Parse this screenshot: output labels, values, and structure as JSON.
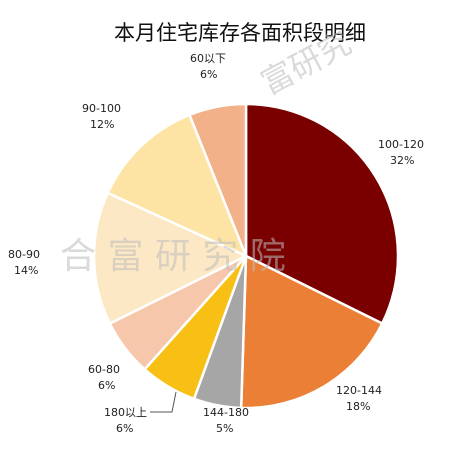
{
  "chart_data": {
    "type": "pie",
    "title": "本月住宅库存各面积段明细",
    "start_angle_deg": 0,
    "direction": "clockwise",
    "slices": [
      {
        "name": "100-120",
        "label": "100-120",
        "pct_label": "32%",
        "value": 32,
        "color": "#7a0000"
      },
      {
        "name": "120-144",
        "label": "120-144",
        "pct_label": "18%",
        "value": 18,
        "color": "#ea7f35"
      },
      {
        "name": "144-180",
        "label": "144-180",
        "pct_label": "5%",
        "value": 5,
        "color": "#a6a6a6"
      },
      {
        "name": "180以上",
        "label": "180以上",
        "pct_label": "6%",
        "value": 6,
        "color": "#f8bf14"
      },
      {
        "name": "60-80",
        "label": "60-80",
        "pct_label": "6%",
        "value": 6,
        "color": "#f6c7aa"
      },
      {
        "name": "80-90",
        "label": "80-90",
        "pct_label": "14%",
        "value": 14,
        "color": "#fde8c5"
      },
      {
        "name": "90-100",
        "label": "90-100",
        "pct_label": "12%",
        "value": 12,
        "color": "#fde4a5"
      },
      {
        "name": "60以下",
        "label": "60以下",
        "pct_label": "6%",
        "value": 6,
        "color": "#f2b188"
      }
    ]
  },
  "watermark": {
    "main": "合 富 研 究 院",
    "corner": "富研究"
  }
}
